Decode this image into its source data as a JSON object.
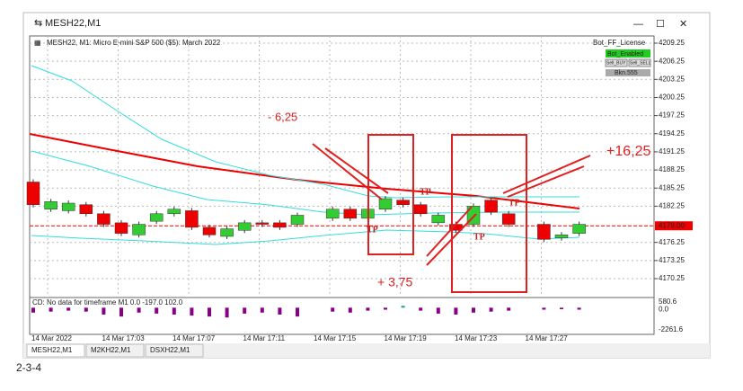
{
  "window": {
    "title": "MESH22,M1",
    "caption": "2-3-4",
    "tabs": [
      "MESH22,M1",
      "M2KH22,M1",
      "DSXH22,M1"
    ]
  },
  "chart": {
    "header": "MESH22, M1:  Micro E-mini S&P 500 ($5): March 2022",
    "license": "Bot_FF_License",
    "buttons": [
      "Bot_Enabled",
      "Sell_BUY",
      "Sell_SELL",
      "Bkn.555"
    ],
    "annotations": [
      "- 6,25",
      "+16,25",
      "+ 3,75"
    ],
    "tp_labels": [
      "TP",
      "TP",
      "TP",
      "TP"
    ],
    "yticks": [
      4209.25,
      4206.25,
      4203.25,
      4200.25,
      4197.25,
      4194.25,
      4191.25,
      4188.25,
      4185.25,
      4182.25,
      4176.25,
      4173.25,
      4170.25
    ],
    "current_price": {
      "value": 4179,
      "label": "4179.00"
    },
    "xlabels": [
      "14 Mar 2022",
      "14 Mar 17:03",
      "14 Mar 17:07",
      "14 Mar 17:11",
      "14 Mar 17:15",
      "14 Mar 17:19",
      "14 Mar 17:23",
      "14 Mar 17:27"
    ],
    "candles": [
      {
        "o": 4186.25,
        "c": 4182.5
      },
      {
        "o": 4181.75,
        "c": 4183
      },
      {
        "o": 4181.5,
        "c": 4182.75
      },
      {
        "o": 4182.5,
        "c": 4181
      },
      {
        "o": 4181,
        "c": 4179.25
      },
      {
        "o": 4179.5,
        "c": 4177.75
      },
      {
        "o": 4177.5,
        "c": 4179.25
      },
      {
        "o": 4179.75,
        "c": 4181
      },
      {
        "o": 4181,
        "c": 4181.75
      },
      {
        "o": 4181.5,
        "c": 4178.75
      },
      {
        "o": 4178.75,
        "c": 4177.5
      },
      {
        "o": 4177.25,
        "c": 4178.5
      },
      {
        "o": 4178.25,
        "c": 4179.5
      },
      {
        "o": 4179.5,
        "c": 4179.25
      },
      {
        "o": 4179.5,
        "c": 4178.75
      },
      {
        "o": 4179.25,
        "c": 4180.75
      },
      null,
      {
        "o": 4180.25,
        "c": 4181.75
      },
      {
        "o": 4181.75,
        "c": 4180.25
      },
      {
        "o": 4180.25,
        "c": 4181.75
      },
      {
        "o": 4181.75,
        "c": 4183.5
      },
      {
        "o": 4183.25,
        "c": 4182.5
      },
      {
        "o": 4182.5,
        "c": 4181
      },
      {
        "o": 4179.5,
        "c": 4180.75
      },
      {
        "o": 4179.25,
        "c": 4178.25
      },
      {
        "o": 4179.25,
        "c": 4182.25
      },
      {
        "o": 4183.25,
        "c": 4181.25
      },
      {
        "o": 4181,
        "c": 4179.25
      },
      null,
      {
        "o": 4179.25,
        "c": 4176.75
      },
      {
        "o": 4177,
        "c": 4177.5
      },
      {
        "o": 4177.75,
        "c": 4179.25
      }
    ]
  },
  "indicator": {
    "text": "CD: No data for timeframe M1 0.0 -197.0 102.0",
    "yticks": [
      {
        "value": 580.6,
        "label": "580.6"
      },
      {
        "value": 0,
        "label": "0.0"
      },
      {
        "value": -2261.6,
        "label": "-2261.6"
      }
    ],
    "volumes": [
      -500,
      -400,
      -300,
      -400,
      -700,
      -900,
      -500,
      -600,
      -700,
      -800,
      -900,
      -1000,
      -600,
      -500,
      -700,
      -900,
      null,
      -400,
      -500,
      -300,
      -200,
      200,
      -300,
      -600,
      -700,
      -500,
      -400,
      -300,
      null,
      -200,
      -150,
      -200
    ]
  }
}
